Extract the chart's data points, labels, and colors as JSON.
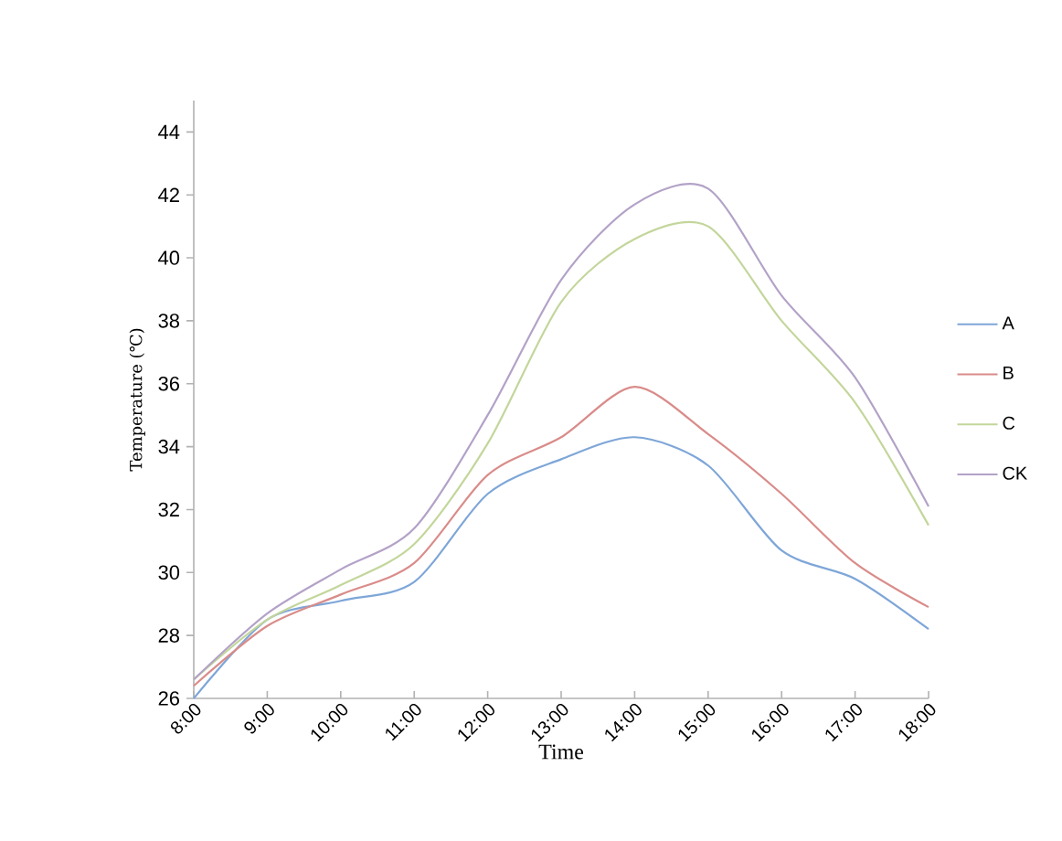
{
  "chart_data": {
    "type": "line",
    "xlabel": "Time",
    "ylabel": "Temperature (℃)",
    "categories": [
      "8:00",
      "9:00",
      "10:00",
      "11:00",
      "12:00",
      "13:00",
      "14:00",
      "15:00",
      "16:00",
      "17:00",
      "18:00"
    ],
    "ylim": [
      26,
      45
    ],
    "yticks": [
      26,
      28,
      30,
      32,
      34,
      36,
      38,
      40,
      42,
      44
    ],
    "grid": false,
    "legend": "right",
    "marker": "none",
    "series": [
      {
        "name": "A",
        "color": "#7ea6d8",
        "values": [
          26.0,
          28.5,
          29.1,
          29.7,
          32.5,
          33.6,
          34.3,
          33.4,
          30.7,
          29.8,
          28.2
        ]
      },
      {
        "name": "B",
        "color": "#d98c8a",
        "values": [
          26.4,
          28.3,
          29.3,
          30.3,
          33.1,
          34.3,
          35.9,
          34.4,
          32.5,
          30.3,
          28.9
        ]
      },
      {
        "name": "C",
        "color": "#c3d69b",
        "values": [
          26.6,
          28.5,
          29.6,
          30.9,
          34.1,
          38.6,
          40.6,
          41.0,
          38.0,
          35.4,
          31.5
        ]
      },
      {
        "name": "CK",
        "color": "#b3a2c7",
        "values": [
          26.6,
          28.7,
          30.1,
          31.4,
          35.0,
          39.3,
          41.7,
          42.2,
          38.8,
          36.2,
          32.1
        ]
      }
    ]
  }
}
